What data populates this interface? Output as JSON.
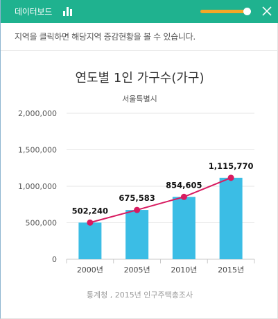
{
  "header": {
    "title": "데이터보드",
    "chart_icon": "bar-chart-icon",
    "close_icon": "close-icon",
    "colors": {
      "background": "#1fb28f",
      "slider": "#f3a726"
    }
  },
  "instruction": "지역을 클릭하면 해당지역 증감현황을 볼 수 있습니다.",
  "chart_data": {
    "type": "bar",
    "title": "연도별 1인 가구수(가구)",
    "subtitle": "서울특별시",
    "categories": [
      "2000년",
      "2005년",
      "2010년",
      "2015년"
    ],
    "series": [
      {
        "type": "bar",
        "values": [
          502240,
          675583,
          854605,
          1115770
        ],
        "color": "#3bbde5"
      },
      {
        "type": "line",
        "values": [
          502240,
          675583,
          854605,
          1115770
        ],
        "color": "#d81b60"
      }
    ],
    "data_labels": [
      "502,240",
      "675,583",
      "854,605",
      "1,115,770"
    ],
    "yticks": [
      0,
      500000,
      1000000,
      1500000,
      2000000
    ],
    "ytick_labels": [
      "0",
      "500,000",
      "1,000,000",
      "1,500,000",
      "2,000,000"
    ],
    "ylim": [
      0,
      2000000
    ],
    "grid": true
  },
  "source": "통계청 , 2015년 인구주택총조사"
}
